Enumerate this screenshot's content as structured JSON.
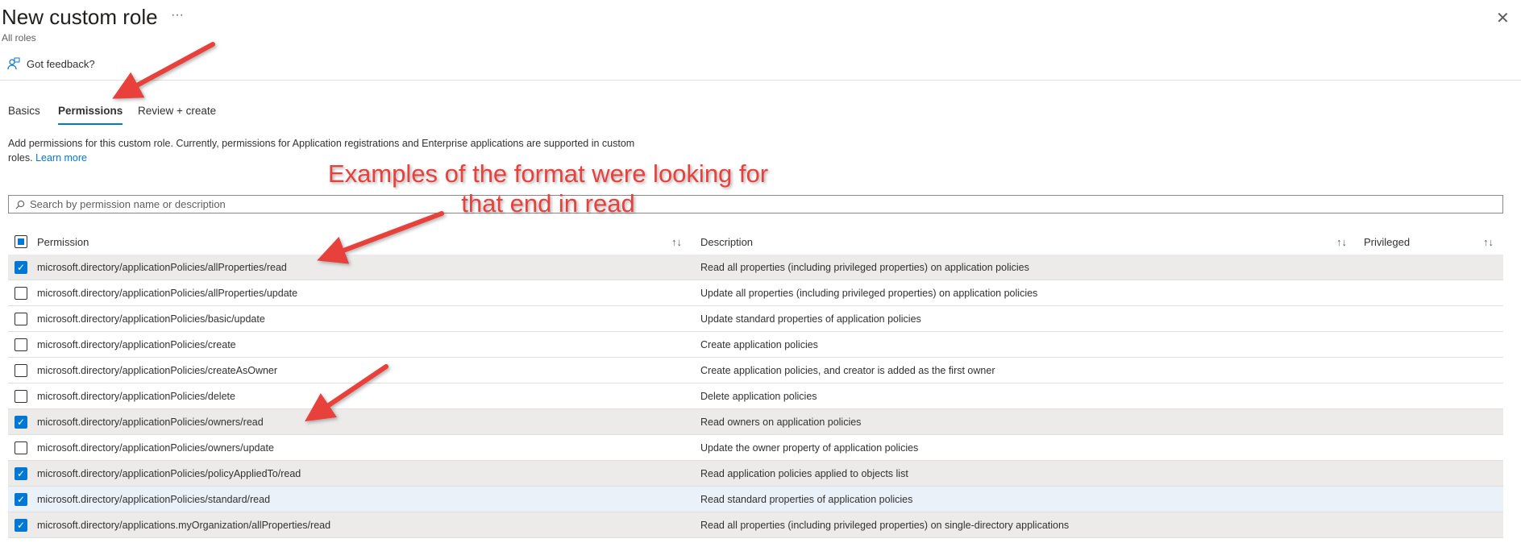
{
  "header": {
    "title": "New custom role",
    "more": "···",
    "subtitle": "All roles",
    "close": "✕",
    "feedback": "Got feedback?"
  },
  "tabs": [
    {
      "label": "Basics"
    },
    {
      "label": "Permissions",
      "active": true
    },
    {
      "label": "Review + create"
    }
  ],
  "info": {
    "text": "Add permissions for this custom role. Currently, permissions for Application registrations and Enterprise applications are supported in custom roles.",
    "link": "Learn more"
  },
  "search": {
    "placeholder": "Search by permission name or description"
  },
  "table": {
    "columns": [
      "Permission",
      "Description",
      "Privileged"
    ],
    "rows": [
      {
        "permission": "microsoft.directory/applicationPolicies/allProperties/read",
        "description": "Read all properties (including privileged properties) on application policies",
        "checked": true
      },
      {
        "permission": "microsoft.directory/applicationPolicies/allProperties/update",
        "description": "Update all properties (including privileged properties) on application policies",
        "checked": false
      },
      {
        "permission": "microsoft.directory/applicationPolicies/basic/update",
        "description": "Update standard properties of application policies",
        "checked": false
      },
      {
        "permission": "microsoft.directory/applicationPolicies/create",
        "description": "Create application policies",
        "checked": false
      },
      {
        "permission": "microsoft.directory/applicationPolicies/createAsOwner",
        "description": "Create application policies, and creator is added as the first owner",
        "checked": false
      },
      {
        "permission": "microsoft.directory/applicationPolicies/delete",
        "description": "Delete application policies",
        "checked": false
      },
      {
        "permission": "microsoft.directory/applicationPolicies/owners/read",
        "description": "Read owners on application policies",
        "checked": true
      },
      {
        "permission": "microsoft.directory/applicationPolicies/owners/update",
        "description": "Update the owner property of application policies",
        "checked": false
      },
      {
        "permission": "microsoft.directory/applicationPolicies/policyAppliedTo/read",
        "description": "Read application policies applied to objects list",
        "checked": true
      },
      {
        "permission": "microsoft.directory/applicationPolicies/standard/read",
        "description": "Read standard properties of application policies",
        "checked": true
      },
      {
        "permission": "microsoft.directory/applications.myOrganization/allProperties/read",
        "description": "Read all properties (including privileged properties) on single-directory applications",
        "checked": true
      }
    ]
  },
  "annotation": {
    "line1": "Examples of the format were looking for",
    "line2": "that end in read",
    "color": "#e8413c"
  },
  "colors": {
    "accent": "#0078d4",
    "selected_row": "#edebe9"
  }
}
